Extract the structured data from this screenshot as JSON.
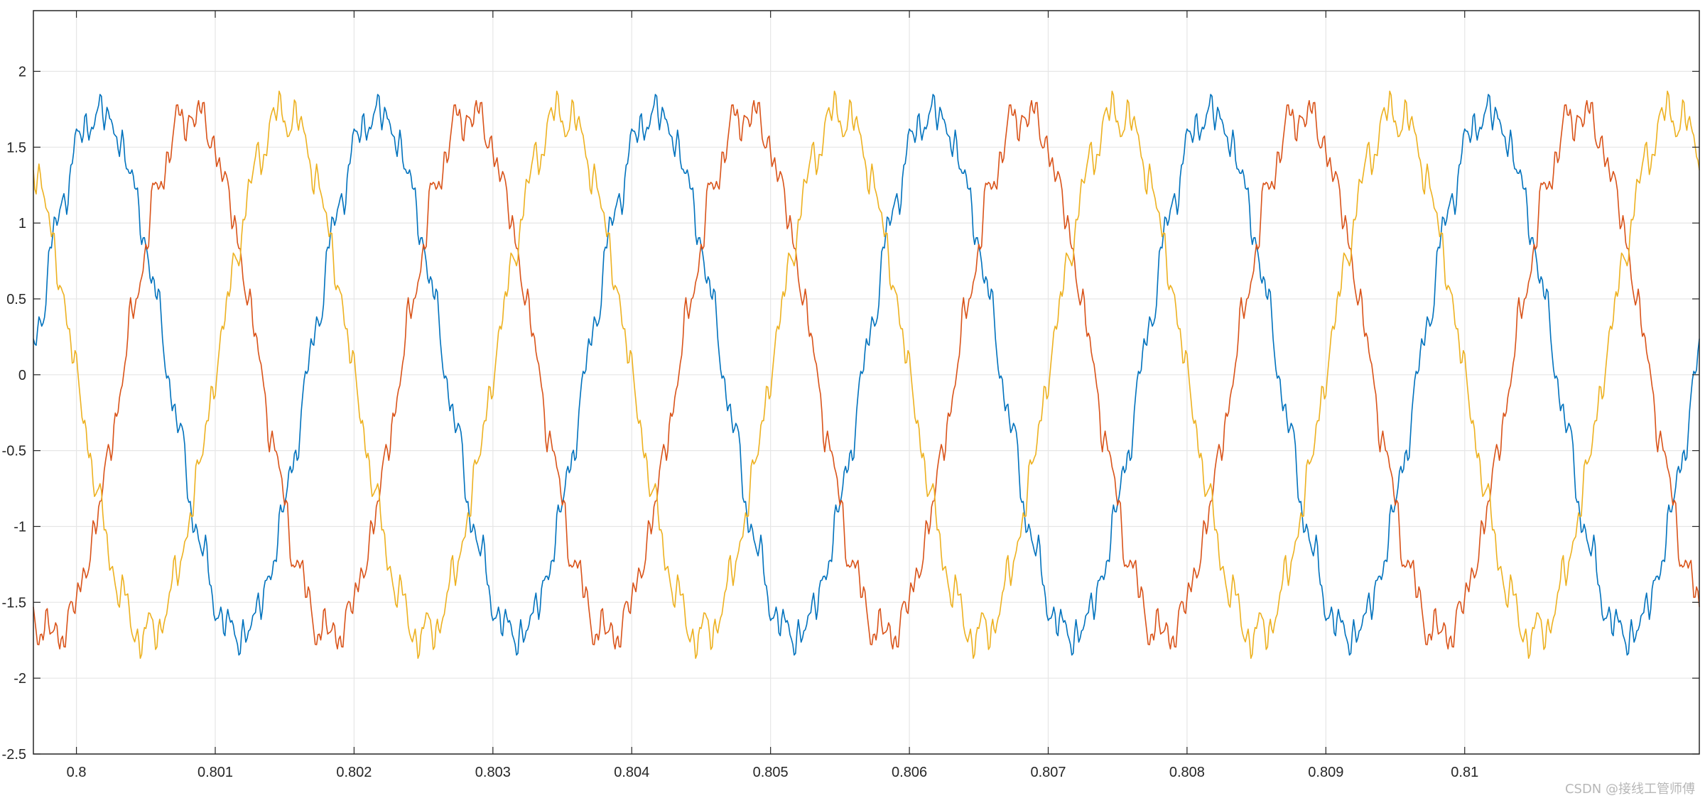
{
  "chart_data": {
    "type": "line",
    "title": "",
    "xlabel": "",
    "ylabel": "",
    "xlim": [
      0.79969,
      0.81169
    ],
    "ylim": [
      -2.5,
      2.4
    ],
    "grid": true,
    "legend": "none",
    "x_ticks": [
      "0.8",
      "0.801",
      "0.802",
      "0.803",
      "0.804",
      "0.805",
      "0.806",
      "0.807",
      "0.808",
      "0.809",
      "0.81"
    ],
    "y_ticks": [
      "2",
      "1.5",
      "1",
      "0.5",
      "0",
      "-0.5",
      "-1",
      "-1.5",
      "-2",
      "-2.5"
    ],
    "waveform": {
      "amplitude": 1.72,
      "frequency": 500,
      "harmonic_noise": 0.12,
      "sample_step": 1e-05
    },
    "series": [
      {
        "color": "#0072BD",
        "phase_offset_deg": 60
      },
      {
        "color": "#D95319",
        "phase_offset_deg": -60
      },
      {
        "color": "#EDB120",
        "phase_offset_deg": 180
      }
    ],
    "axis_color": "#262626",
    "grid_color": "#e6e6e6"
  },
  "watermark": {
    "text": "CSDN @接线工管师傅"
  }
}
